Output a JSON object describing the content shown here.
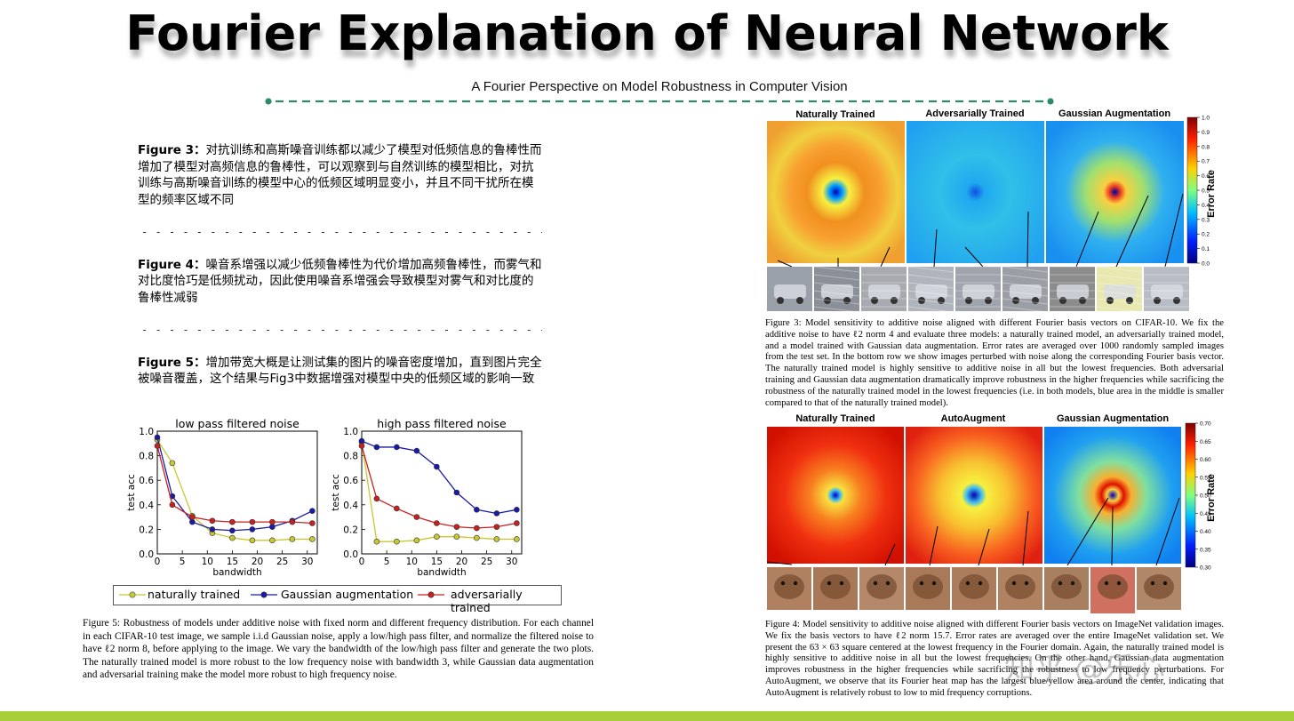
{
  "slide": {
    "title": "Fourier Explanation of Neural Network",
    "subtitle": "A Fourier Perspective on Model Robustness in Computer Vision",
    "accent_color": "#2a8a6a",
    "bottom_bar_color": "#a6cf39"
  },
  "notes": [
    {
      "label": "Figure 3：",
      "text": "对抗训练和高斯噪音训练都以减少了模型对低频信息的鲁棒性而增加了模型对高频信息的鲁棒性，可以观察到与自然训练的模型相比，对抗训练与高斯噪音训练的模型中心的低频区域明显变小，并且不同干扰所在模型的频率区域不同"
    },
    {
      "label": "Figure 4：",
      "text": "噪音系增强以减少低频鲁棒性为代价增加高频鲁棒性，而雾气和对比度恰巧是低频扰动，因此使用噪音系增强会导致模型对雾气和对比度的鲁棒性减弱"
    },
    {
      "label": "Figure 5：",
      "text": "增加带宽大概是让测试集的图片的噪音密度增加，直到图片完全被噪音覆盖，这个结果与Fig3中数据增强对模型中央的低频区域的影响一致"
    }
  ],
  "separator": "- - - - - - - - - - - - - - - - - - - - - - - - - - - - - - - - - - - - - - - - - - - - - - - - - - - - - - - - -",
  "chart_data": [
    {
      "type": "line",
      "title": "low pass filtered noise",
      "xlabel": "bandwidth",
      "ylabel": "test acc",
      "xlim": [
        0,
        32
      ],
      "ylim": [
        0,
        1.0
      ],
      "xticks": [
        "0",
        "5",
        "10",
        "15",
        "20",
        "25",
        "30"
      ],
      "yticks": [
        "0.0",
        "0.2",
        "0.4",
        "0.6",
        "0.8",
        "1.0"
      ],
      "x": [
        0,
        3,
        7,
        11,
        15,
        19,
        23,
        27,
        31
      ],
      "series": [
        {
          "name": "naturally trained",
          "color": "#c8c832",
          "values": [
            0.93,
            0.74,
            0.31,
            0.17,
            0.13,
            0.11,
            0.11,
            0.12,
            0.12
          ]
        },
        {
          "name": "Gaussian augmentation",
          "color": "#1a1aa8",
          "values": [
            0.95,
            0.47,
            0.26,
            0.2,
            0.19,
            0.2,
            0.22,
            0.27,
            0.35
          ]
        },
        {
          "name": "adversarially trained",
          "color": "#c82020",
          "values": [
            0.88,
            0.4,
            0.3,
            0.27,
            0.26,
            0.26,
            0.26,
            0.26,
            0.25
          ]
        }
      ]
    },
    {
      "type": "line",
      "title": "high pass filtered noise",
      "xlabel": "bandwidth",
      "ylabel": "test acc",
      "xlim": [
        0,
        32
      ],
      "ylim": [
        0,
        1.0
      ],
      "xticks": [
        "0",
        "5",
        "10",
        "15",
        "20",
        "25",
        "30"
      ],
      "yticks": [
        "0.0",
        "0.2",
        "0.4",
        "0.6",
        "0.8",
        "1.0"
      ],
      "x": [
        0,
        3,
        7,
        11,
        15,
        19,
        23,
        27,
        31
      ],
      "series": [
        {
          "name": "naturally trained",
          "color": "#c8c832",
          "values": [
            0.91,
            0.1,
            0.1,
            0.11,
            0.14,
            0.14,
            0.13,
            0.12,
            0.12
          ]
        },
        {
          "name": "Gaussian augmentation",
          "color": "#1a1aa8",
          "values": [
            0.92,
            0.87,
            0.87,
            0.84,
            0.71,
            0.5,
            0.36,
            0.33,
            0.36
          ]
        },
        {
          "name": "adversarially trained",
          "color": "#c82020",
          "values": [
            0.88,
            0.45,
            0.37,
            0.3,
            0.25,
            0.22,
            0.21,
            0.22,
            0.25
          ]
        }
      ]
    }
  ],
  "legend": [
    "naturally trained",
    "Gaussian augmentation",
    "adversarially trained"
  ],
  "figure3": {
    "panels": [
      "Naturally Trained",
      "Adversarially Trained",
      "Gaussian Augmentation"
    ],
    "colorbar_label": "Error Rate",
    "colorbar_ticks": [
      "1.0",
      "0.9",
      "0.8",
      "0.7",
      "0.6",
      "0.5",
      "0.4",
      "0.3",
      "0.2",
      "0.1",
      "0.0"
    ],
    "caption": "Figure 3: Model sensitivity to additive noise aligned with different Fourier basis vectors on CIFAR-10. We fix the additive noise to have ℓ2 norm 4 and evaluate three models: a naturally trained model, an adversarially trained model, and a model trained with Gaussian data augmentation. Error rates are averaged over 1000 randomly sampled images from the test set. In the bottom row we show images perturbed with noise along the corresponding Fourier basis vector. The naturally trained model is highly sensitive to additive noise in all but the lowest frequencies. Both adversarial training and Gaussian data augmentation dramatically improve robustness in the higher frequencies while sacrificing the robustness of the naturally trained model in the lowest frequencies (i.e. in both models, blue area in the middle is smaller compared to that of the naturally trained model)."
  },
  "figure4": {
    "panels": [
      "Naturally Trained",
      "AutoAugment",
      "Gaussian Augmentation"
    ],
    "colorbar_label": "Error Rate",
    "colorbar_ticks": [
      "0.70",
      "0.65",
      "0.60",
      "0.55",
      "0.50",
      "0.45",
      "0.40",
      "0.35",
      "0.30"
    ],
    "caption": "Figure 4: Model sensitivity to additive noise aligned with different Fourier basis vectors on ImageNet validation images. We fix the basis vectors to have ℓ2 norm 15.7. Error rates are averaged over the entire ImageNet validation set. We present the 63 × 63 square centered at the lowest frequency in the Fourier domain. Again, the naturally trained model is highly sensitive to additive noise in all but the lowest frequencies. On the other hand, Gaussian data augmentation improves robustness in the higher frequencies while sacrificing the robustness to low frequency perturbations. For AutoAugment, we observe that its Fourier heat map has the largest blue/yellow area around the center, indicating that AutoAugment is relatively robust to low to mid frequency corruptions."
  },
  "figure5": {
    "caption": "Figure 5: Robustness of models under additive noise with fixed norm and different frequency distribution. For each channel in each CIFAR-10 test image, we sample i.i.d Gaussian noise, apply a low/high pass filter, and normalize the filtered noise to have ℓ2 norm 8, before applying to the image. We vary the bandwidth of the low/high pass filter and generate the two plots. The naturally trained model is more robust to the low frequency noise with bandwidth 3, while Gaussian data augmentation and adversarial training make the model more robust to high frequency noise."
  },
  "watermark": "知乎 @乐心"
}
